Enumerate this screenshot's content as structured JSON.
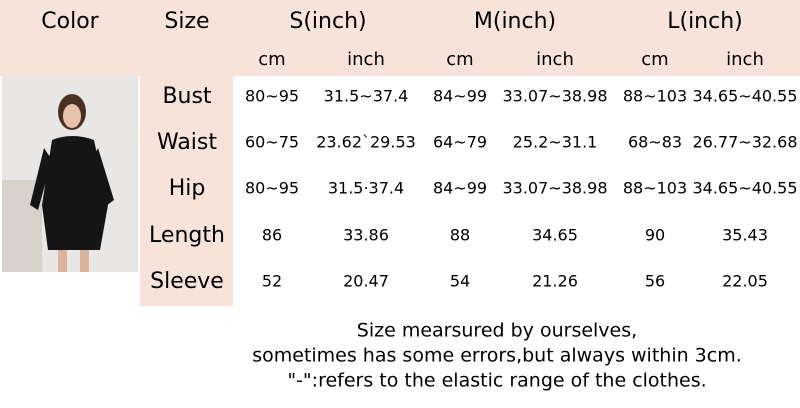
{
  "header": {
    "columns": [
      "Color",
      "Size",
      "S(inch)",
      "M(inch)",
      "L(inch)"
    ],
    "units": [
      "cm",
      "inch",
      "cm",
      "inch",
      "cm",
      "inch"
    ]
  },
  "rows": [
    {
      "label": "Bust",
      "values": [
        "80~95",
        "31.5~37.4",
        "84~99",
        "33.07~38.98",
        "88~103",
        "34.65~40.55"
      ]
    },
    {
      "label": "Waist",
      "values": [
        "60~75",
        "23.62`29.53",
        "64~79",
        "25.2~31.1",
        "68~83",
        "26.77~32.68"
      ]
    },
    {
      "label": "Hip",
      "values": [
        "80~95",
        "31.5·37.4",
        "84~99",
        "33.07~38.98",
        "88~103",
        "34.65~40.55"
      ]
    },
    {
      "label": "Length",
      "values": [
        "86",
        "33.86",
        "88",
        "34.65",
        "90",
        "35.43"
      ]
    },
    {
      "label": "Sleeve",
      "values": [
        "52",
        "20.47",
        "54",
        "21.26",
        "56",
        "22.05"
      ]
    }
  ],
  "notes": [
    "Size mearsured by ourselves,",
    "sometimes has some errors,but always within 3cm.",
    "\"-\":refers to the elastic range of the clothes."
  ]
}
